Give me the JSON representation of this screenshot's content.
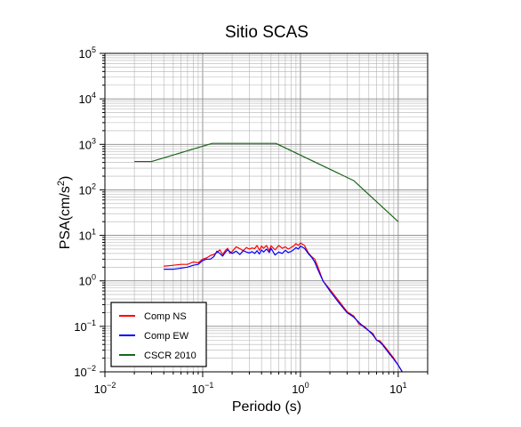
{
  "chart_data": {
    "type": "line",
    "title": "Sitio SCAS",
    "xlabel": "Periodo (s)",
    "ylabel_main": "PSA(cm/s",
    "ylabel_sup": "2",
    "ylabel_tail": ")",
    "x_scale": "log",
    "y_scale": "log",
    "xlim": [
      0.01,
      20
    ],
    "ylim": [
      0.01,
      100000
    ],
    "x_ticks": [
      {
        "value": 0.01,
        "base": "10",
        "exp": "−2"
      },
      {
        "value": 0.1,
        "base": "10",
        "exp": "−1"
      },
      {
        "value": 1,
        "base": "10",
        "exp": "0"
      },
      {
        "value": 10,
        "base": "10",
        "exp": "1"
      }
    ],
    "y_ticks": [
      {
        "value": 0.01,
        "base": "10",
        "exp": "−2"
      },
      {
        "value": 0.1,
        "base": "10",
        "exp": "−1"
      },
      {
        "value": 1,
        "base": "10",
        "exp": "0"
      },
      {
        "value": 10,
        "base": "10",
        "exp": "1"
      },
      {
        "value": 100,
        "base": "10",
        "exp": "2"
      },
      {
        "value": 1000,
        "base": "10",
        "exp": "3"
      },
      {
        "value": 10000,
        "base": "10",
        "exp": "4"
      },
      {
        "value": 100000,
        "base": "10",
        "exp": "5"
      }
    ],
    "grid": true,
    "legend_position": "bottom-left",
    "series": [
      {
        "name": "Comp NS",
        "color": "#ff0000",
        "x": [
          0.04,
          0.05,
          0.06,
          0.07,
          0.08,
          0.09,
          0.1,
          0.11,
          0.12,
          0.13,
          0.14,
          0.15,
          0.16,
          0.17,
          0.18,
          0.19,
          0.2,
          0.22,
          0.24,
          0.26,
          0.28,
          0.3,
          0.32,
          0.34,
          0.36,
          0.38,
          0.4,
          0.42,
          0.45,
          0.48,
          0.5,
          0.55,
          0.6,
          0.65,
          0.7,
          0.75,
          0.8,
          0.85,
          0.9,
          0.95,
          1.0,
          1.1,
          1.2,
          1.3,
          1.4,
          1.5,
          1.7,
          2.0,
          2.5,
          3.0,
          3.5,
          4.0,
          4.5,
          5.0,
          5.5,
          6.0,
          6.5,
          7.0,
          8.0,
          9.0,
          10.0,
          11.0
        ],
        "y": [
          2.1,
          2.2,
          2.3,
          2.3,
          2.6,
          2.5,
          3.0,
          3.2,
          3.6,
          3.8,
          4.2,
          4.8,
          3.8,
          4.6,
          5.2,
          4.0,
          4.4,
          5.6,
          5.1,
          4.6,
          5.4,
          5.0,
          5.3,
          5.1,
          6.0,
          4.7,
          5.8,
          5.2,
          6.0,
          4.6,
          5.9,
          4.8,
          6.0,
          5.2,
          5.6,
          5.0,
          5.4,
          5.8,
          6.6,
          6.0,
          6.8,
          6.0,
          4.2,
          3.4,
          3.0,
          2.1,
          1.0,
          0.65,
          0.35,
          0.21,
          0.17,
          0.11,
          0.1,
          0.08,
          0.07,
          0.05,
          0.048,
          0.04,
          0.028,
          0.02,
          0.014,
          0.01
        ]
      },
      {
        "name": "Comp EW",
        "color": "#0000ff",
        "x": [
          0.04,
          0.05,
          0.06,
          0.07,
          0.08,
          0.09,
          0.1,
          0.11,
          0.12,
          0.13,
          0.14,
          0.15,
          0.16,
          0.17,
          0.18,
          0.19,
          0.2,
          0.22,
          0.24,
          0.26,
          0.28,
          0.3,
          0.32,
          0.34,
          0.36,
          0.38,
          0.4,
          0.42,
          0.45,
          0.48,
          0.5,
          0.55,
          0.6,
          0.65,
          0.7,
          0.75,
          0.8,
          0.85,
          0.9,
          0.95,
          1.0,
          1.1,
          1.2,
          1.3,
          1.4,
          1.5,
          1.7,
          2.0,
          2.5,
          3.0,
          3.5,
          4.0,
          4.5,
          5.0,
          5.5,
          6.0,
          6.5,
          7.0,
          8.0,
          9.0,
          10.0,
          11.0
        ],
        "y": [
          1.8,
          1.8,
          1.9,
          2.0,
          2.2,
          2.3,
          2.8,
          3.0,
          3.0,
          3.4,
          4.5,
          4.0,
          3.5,
          4.2,
          4.8,
          4.4,
          4.0,
          4.5,
          3.8,
          4.6,
          4.3,
          4.1,
          4.4,
          4.0,
          4.6,
          3.9,
          4.8,
          4.3,
          5.0,
          4.2,
          5.2,
          3.7,
          4.3,
          4.0,
          4.7,
          4.2,
          4.4,
          4.8,
          5.4,
          5.0,
          5.8,
          5.2,
          4.0,
          3.3,
          2.6,
          1.8,
          1.0,
          0.6,
          0.32,
          0.2,
          0.16,
          0.12,
          0.095,
          0.08,
          0.065,
          0.05,
          0.045,
          0.038,
          0.026,
          0.019,
          0.014,
          0.01
        ]
      },
      {
        "name": "CSCR 2010",
        "color": "#1a661a",
        "x": [
          0.02,
          0.03,
          0.125,
          0.56,
          3.5,
          10.0
        ],
        "y": [
          420,
          420,
          1050,
          1050,
          160,
          20
        ]
      }
    ]
  }
}
